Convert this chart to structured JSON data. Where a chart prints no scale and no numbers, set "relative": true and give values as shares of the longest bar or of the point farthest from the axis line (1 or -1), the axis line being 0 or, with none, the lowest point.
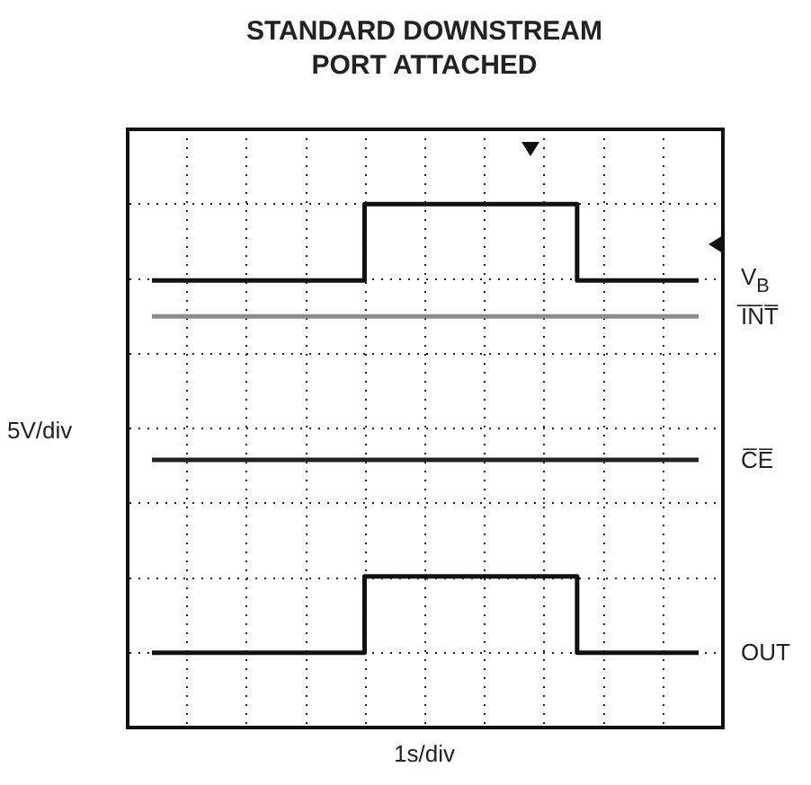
{
  "chart_data": {
    "type": "step",
    "title": "STANDARD DOWNSTREAM PORT ATTACHED",
    "xlabel": "1s/div",
    "ylabel": "5V/div",
    "relative": true,
    "grid": true,
    "legend": false,
    "marker": "none",
    "line_style": "solid",
    "categories": [
      null,
      null,
      null,
      null,
      null,
      null,
      null,
      null,
      null,
      null,
      null,
      null,
      null,
      null,
      null,
      null,
      null,
      null,
      null
    ],
    "series": [
      {
        "name": "V$_{B}$",
        "color": "#111111",
        "values": [
          0.83,
          0.83,
          0.83,
          0.83,
          0.83,
          0.83,
          0.83,
          0.83,
          1,
          1,
          1,
          1,
          1,
          1,
          1,
          0.83,
          0.83,
          0.83,
          0.83
        ]
      },
      {
        "name": "I̅N̅T̅",
        "color": "#8c8c8c",
        "values": [
          0.75,
          0.75,
          0.75,
          0.75,
          0.75,
          0.75,
          0.75,
          0.75,
          0.75,
          0.75,
          0.75,
          0.75,
          0.75,
          0.75,
          0.75,
          0.75,
          0.75,
          0.75,
          0.75
        ]
      },
      {
        "name": "C̅E̅",
        "color": "#222222",
        "values": [
          0.43,
          0.43,
          0.43,
          0.43,
          0.43,
          0.43,
          0.43,
          0.43,
          0.43,
          0.43,
          0.43,
          0.43,
          0.43,
          0.43,
          0.43,
          0.43,
          0.43,
          0.43,
          0.43
        ]
      },
      {
        "name": "OUT",
        "color": "#111111",
        "values": [
          0,
          0,
          0,
          0,
          0,
          0,
          0,
          0,
          0.17,
          0.17,
          0.17,
          0.17,
          0.17,
          0.17,
          0.17,
          0,
          0,
          0,
          0
        ]
      }
    ]
  }
}
